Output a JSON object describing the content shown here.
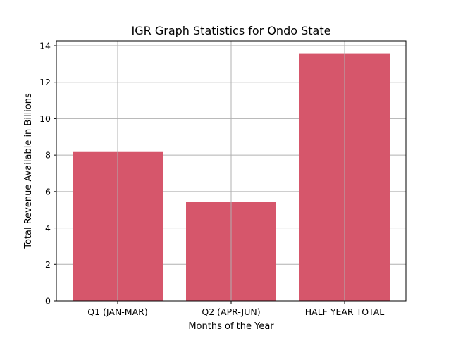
{
  "chart_data": {
    "type": "bar",
    "title": "IGR Graph Statistics for Ondo State",
    "xlabel": "Months of the Year",
    "ylabel": "Total Revenue Available in Billions",
    "categories": [
      "Q1 (JAN-MAR)",
      "Q2 (APR-JUN)",
      "HALF YEAR TOTAL"
    ],
    "values": [
      8.17,
      5.42,
      13.59
    ],
    "ylim": [
      0,
      14.27
    ],
    "yticks": [
      0,
      2,
      4,
      6,
      8,
      10,
      12,
      14
    ],
    "grid": true,
    "bar_color": "#d6566b",
    "grid_color": "#b0b0b0"
  }
}
